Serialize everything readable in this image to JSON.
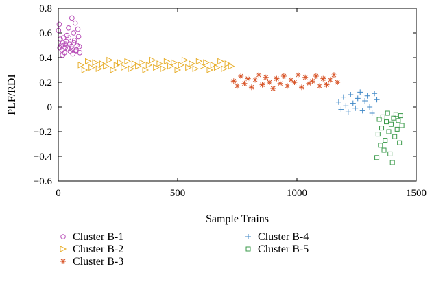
{
  "chart_data": {
    "type": "scatter",
    "title": "",
    "xlabel": "Sample Trains",
    "ylabel": "PLF/RDI",
    "xlim": [
      0,
      1500
    ],
    "ylim": [
      -0.6,
      0.8
    ],
    "xticks": [
      0,
      500,
      1000,
      1500
    ],
    "yticks": [
      -0.6,
      -0.4,
      -0.2,
      0,
      0.2,
      0.4,
      0.6,
      0.8
    ],
    "xtick_labels": [
      "0",
      "500",
      "1000",
      "1500"
    ],
    "ytick_labels": [
      "−0.6",
      "−0.4",
      "−0.2",
      "0",
      "0.2",
      "0.4",
      "0.6",
      "0.8"
    ],
    "grid": false,
    "legend_position": "bottom",
    "series": [
      {
        "name": "Cluster B-1",
        "marker": "circle",
        "color": "#b84fb8",
        "x": [
          1,
          4,
          8,
          12,
          15,
          19,
          22,
          26,
          29,
          33,
          36,
          40,
          43,
          47,
          50,
          54,
          57,
          61,
          64,
          68,
          71,
          75,
          78,
          82,
          85,
          90,
          6,
          18,
          30,
          44,
          58,
          66,
          74,
          88
        ],
        "y": [
          0.62,
          0.67,
          0.55,
          0.5,
          0.46,
          0.52,
          0.56,
          0.44,
          0.48,
          0.53,
          0.58,
          0.47,
          0.64,
          0.51,
          0.45,
          0.49,
          0.72,
          0.43,
          0.6,
          0.54,
          0.68,
          0.46,
          0.5,
          0.63,
          0.57,
          0.44,
          0.48,
          0.42,
          0.51,
          0.56,
          0.47,
          0.52,
          0.45,
          0.49
        ]
      },
      {
        "name": "Cluster B-2",
        "marker": "triangle-right",
        "color": "#e8b030",
        "x": [
          95,
          110,
          125,
          140,
          155,
          170,
          185,
          200,
          215,
          230,
          245,
          260,
          275,
          290,
          305,
          320,
          335,
          350,
          365,
          380,
          395,
          410,
          425,
          440,
          455,
          470,
          485,
          500,
          515,
          530,
          545,
          560,
          575,
          590,
          605,
          620,
          635,
          650,
          665,
          680,
          695,
          710,
          725
        ],
        "y": [
          0.34,
          0.3,
          0.37,
          0.32,
          0.36,
          0.31,
          0.35,
          0.33,
          0.38,
          0.3,
          0.34,
          0.36,
          0.32,
          0.37,
          0.31,
          0.35,
          0.33,
          0.36,
          0.3,
          0.34,
          0.38,
          0.32,
          0.35,
          0.31,
          0.37,
          0.33,
          0.36,
          0.3,
          0.34,
          0.38,
          0.32,
          0.35,
          0.31,
          0.37,
          0.33,
          0.36,
          0.3,
          0.34,
          0.32,
          0.37,
          0.31,
          0.35,
          0.33
        ]
      },
      {
        "name": "Cluster B-3",
        "marker": "asterisk",
        "color": "#d8562a",
        "x": [
          735,
          750,
          765,
          780,
          795,
          810,
          825,
          840,
          855,
          870,
          885,
          900,
          915,
          930,
          945,
          960,
          975,
          990,
          1005,
          1020,
          1035,
          1050,
          1065,
          1080,
          1095,
          1110,
          1125,
          1140,
          1155,
          1170
        ],
        "y": [
          0.21,
          0.17,
          0.25,
          0.19,
          0.23,
          0.16,
          0.22,
          0.26,
          0.18,
          0.24,
          0.2,
          0.15,
          0.23,
          0.19,
          0.25,
          0.17,
          0.22,
          0.2,
          0.26,
          0.16,
          0.24,
          0.19,
          0.21,
          0.25,
          0.17,
          0.23,
          0.18,
          0.22,
          0.26,
          0.2
        ]
      },
      {
        "name": "Cluster B-4",
        "marker": "plus",
        "color": "#3d86c6",
        "x": [
          1175,
          1185,
          1195,
          1205,
          1215,
          1225,
          1235,
          1245,
          1255,
          1265,
          1275,
          1285,
          1295,
          1305,
          1315,
          1325,
          1335
        ],
        "y": [
          0.04,
          -0.02,
          0.08,
          0.01,
          -0.04,
          0.1,
          0.03,
          -0.01,
          0.07,
          0.12,
          -0.03,
          0.05,
          0.09,
          0.0,
          -0.05,
          0.11,
          0.06
        ]
      },
      {
        "name": "Cluster B-5",
        "marker": "square",
        "color": "#3a9a4a",
        "x": [
          1335,
          1340,
          1345,
          1350,
          1355,
          1360,
          1365,
          1370,
          1375,
          1380,
          1385,
          1390,
          1395,
          1400,
          1405,
          1410,
          1415,
          1420,
          1425,
          1430,
          1435,
          1440
        ],
        "y": [
          -0.41,
          -0.22,
          -0.1,
          -0.31,
          -0.17,
          -0.08,
          -0.35,
          -0.27,
          -0.12,
          -0.05,
          -0.2,
          -0.38,
          -0.14,
          -0.45,
          -0.09,
          -0.24,
          -0.06,
          -0.18,
          -0.11,
          -0.29,
          -0.07,
          -0.15
        ]
      }
    ]
  }
}
